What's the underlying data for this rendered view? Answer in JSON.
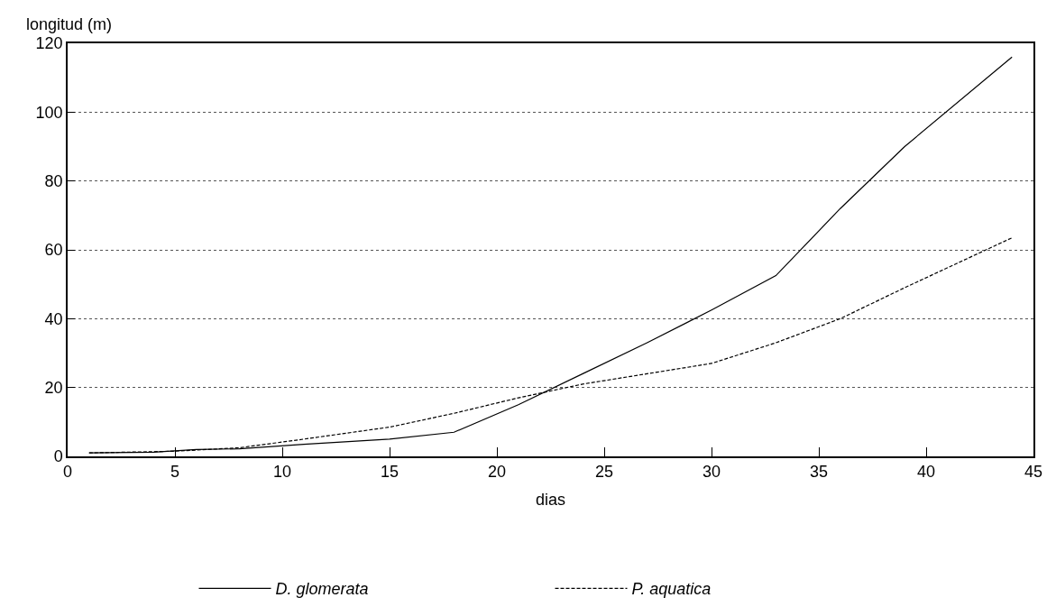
{
  "chart_data": {
    "type": "line",
    "xlabel": "dias",
    "ylabel": "longitud (m)",
    "xlim": [
      0,
      45
    ],
    "xticks": [
      0,
      5,
      10,
      15,
      20,
      25,
      30,
      35,
      40,
      45
    ],
    "ylim": [
      0,
      120
    ],
    "yticks": [
      0,
      20,
      40,
      60,
      80,
      100,
      120
    ],
    "grid": "y",
    "legend": "bottom",
    "marker": "none",
    "series": [
      {
        "name": "D. glomerata",
        "color": "#000000",
        "line_style": "solid",
        "x": [
          1,
          4,
          6,
          8,
          11,
          15,
          18,
          21,
          24,
          27,
          30,
          33,
          36,
          39,
          44
        ],
        "values": [
          1,
          1.2,
          2,
          2.2,
          3.5,
          5,
          7,
          15,
          24,
          33,
          42.5,
          52.5,
          72,
          90,
          116
        ]
      },
      {
        "name": "P. aquatica",
        "color": "#000000",
        "line_style": "dashed",
        "x": [
          1,
          5,
          8,
          11,
          15,
          18,
          21,
          24,
          27,
          30,
          33,
          36,
          39,
          44
        ],
        "values": [
          1,
          1.5,
          2.5,
          5,
          8.5,
          12.5,
          17,
          21,
          24,
          27,
          33,
          40,
          49,
          63.5
        ]
      }
    ]
  }
}
